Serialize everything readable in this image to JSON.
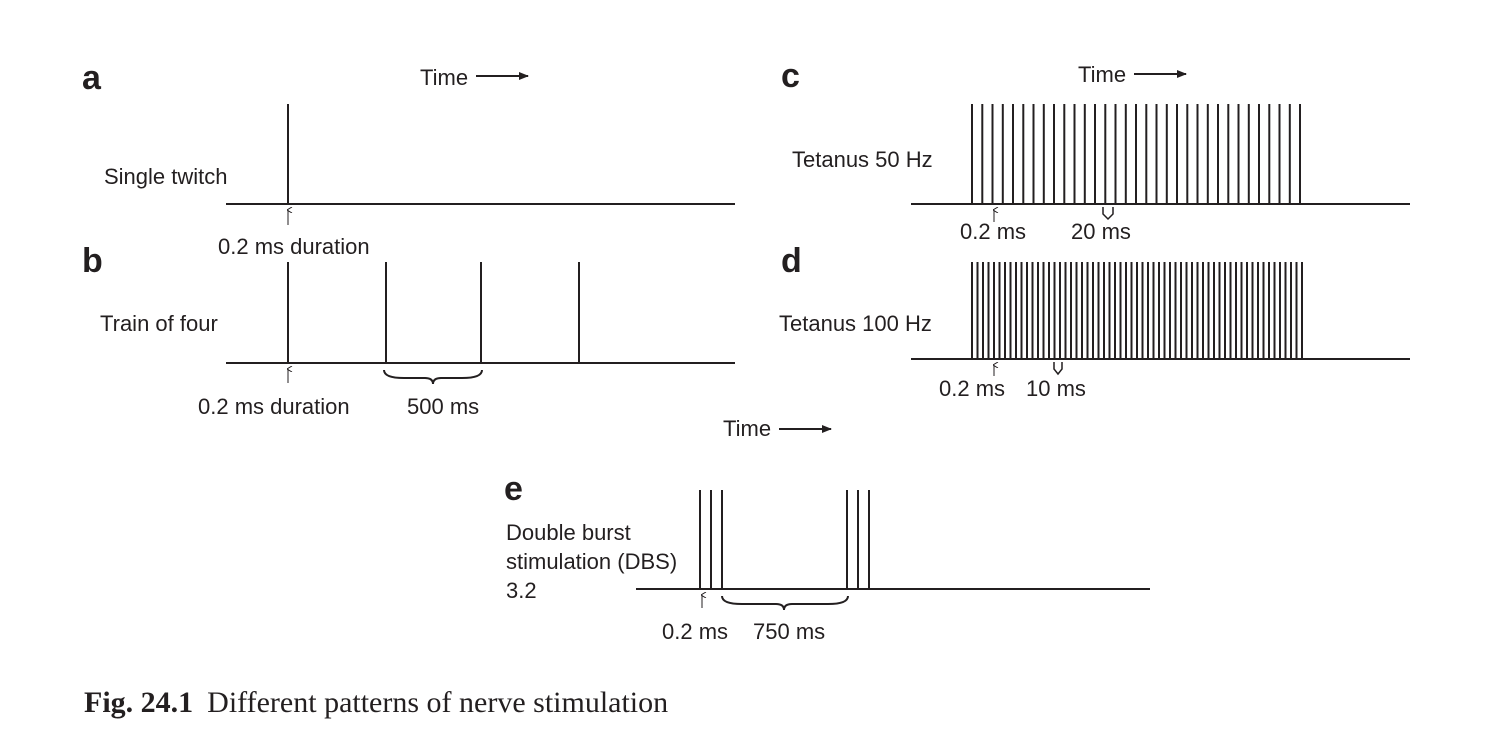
{
  "panels": {
    "a": {
      "letter": "a",
      "time_label": "Time",
      "label": "Single twitch",
      "duration_label": "0.2 ms duration"
    },
    "b": {
      "letter": "b",
      "label": "Train of four",
      "duration_label": "0.2 ms duration",
      "interval_label": "500 ms",
      "pulse_count": 4
    },
    "c": {
      "letter": "c",
      "time_label": "Time",
      "label": "Tetanus 50 Hz",
      "duration_label": "0.2 ms",
      "interval_label": "20 ms"
    },
    "d": {
      "letter": "d",
      "label": "Tetanus 100 Hz",
      "duration_label": "0.2 ms",
      "interval_label": "10 ms"
    },
    "e": {
      "letter": "e",
      "time_label": "Time",
      "label_lines": [
        "Double burst",
        "stimulation (DBS)",
        "3.2"
      ],
      "duration_label": "0.2 ms",
      "interval_label": "750 ms",
      "pulses_per_burst": 3
    }
  },
  "caption": {
    "number": "Fig. 24.1",
    "text": "Different patterns of nerve stimulation"
  }
}
